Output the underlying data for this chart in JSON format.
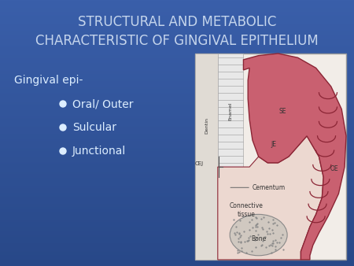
{
  "title_line1": "STRUCTURAL AND METABOLIC",
  "title_line2": "CHARACTERISTIC OF GINGIVAL EPITHELIUM",
  "title_color": "#c5d5ec",
  "bg_color": "#4466aa",
  "text_gingival": "Gingival epi-",
  "bullets": [
    "Oral/ Outer",
    "Sulcular",
    "Junctional"
  ],
  "text_color": "#ddeeff",
  "bullet_color": "#ddeeff",
  "diagram_bg": "#f2ede8",
  "dentin_color": "#e0dbd4",
  "enamel_color": "#e8e8e8",
  "enamel_line_color": "#aaaaaa",
  "gingiva_outer_color": "#c96070",
  "gingiva_outer_edge": "#8b2535",
  "gingiva_inner_color": "#e8bfc0",
  "inner_tissue_color": "#ecd8d0",
  "bone_color": "#c8c0b8",
  "bone_dot_color": "#999999",
  "label_color": "#333333",
  "diagram_border": "#999999"
}
